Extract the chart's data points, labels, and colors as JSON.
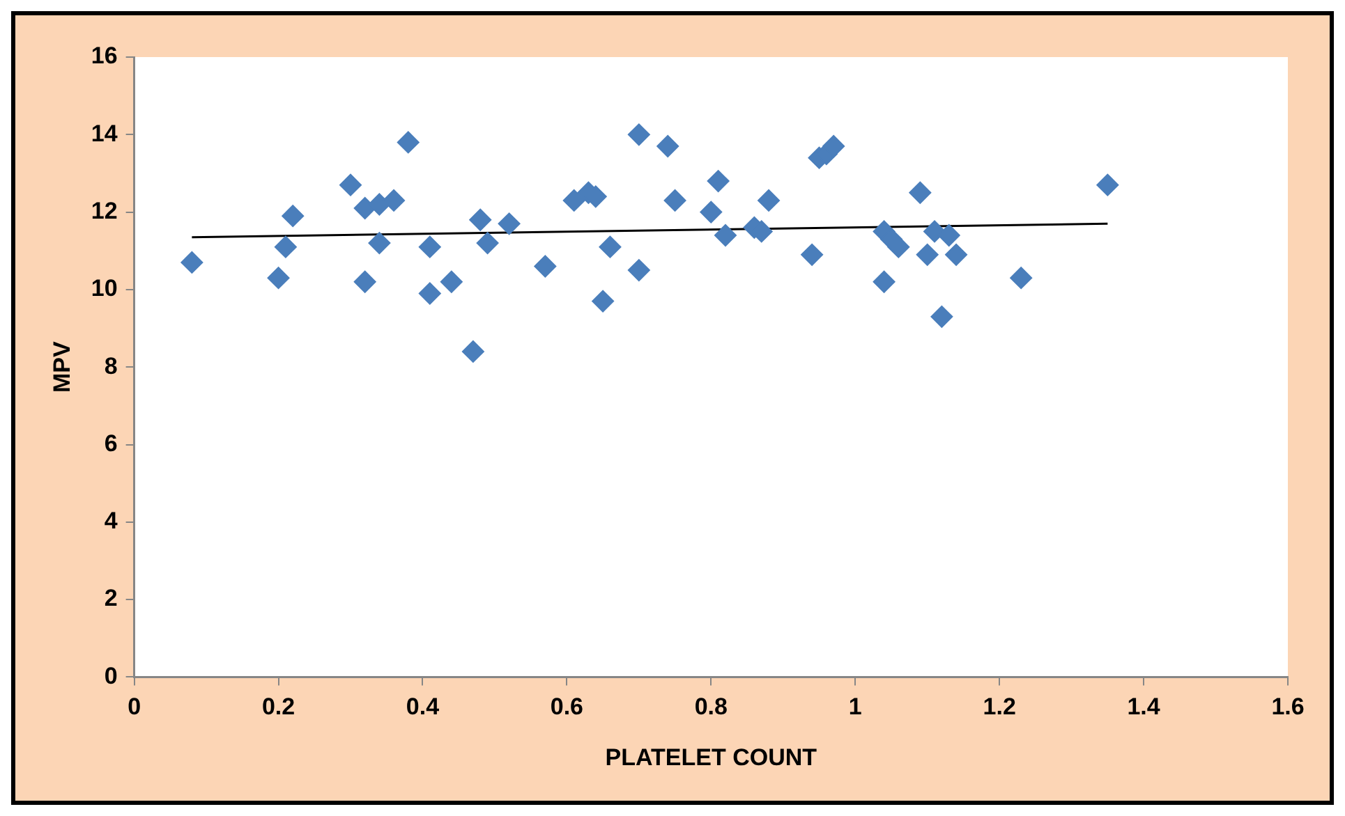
{
  "chart_data": {
    "type": "scatter",
    "xlabel": "PLATELET COUNT",
    "ylabel": "MPV",
    "xlim": [
      0,
      1.6
    ],
    "ylim": [
      0,
      16
    ],
    "xticks": [
      0,
      0.2,
      0.4,
      0.6,
      0.8,
      1,
      1.2,
      1.4,
      1.6
    ],
    "yticks": [
      0,
      2,
      4,
      6,
      8,
      10,
      12,
      14,
      16
    ],
    "grid": false,
    "legend": false,
    "marker": "diamond",
    "series": [
      {
        "type": "scatter",
        "color": "#4a7ebb",
        "x": [
          0.08,
          0.2,
          0.21,
          0.22,
          0.3,
          0.32,
          0.32,
          0.34,
          0.34,
          0.36,
          0.38,
          0.41,
          0.41,
          0.44,
          0.47,
          0.48,
          0.49,
          0.52,
          0.57,
          0.61,
          0.63,
          0.64,
          0.65,
          0.66,
          0.7,
          0.7,
          0.74,
          0.75,
          0.8,
          0.81,
          0.82,
          0.86,
          0.87,
          0.88,
          0.94,
          0.95,
          0.96,
          0.97,
          1.04,
          1.04,
          1.05,
          1.06,
          1.09,
          1.1,
          1.11,
          1.12,
          1.13,
          1.14,
          1.23,
          1.35
        ],
        "values": [
          10.7,
          10.3,
          11.1,
          11.9,
          12.7,
          12.1,
          10.2,
          12.2,
          11.2,
          12.3,
          13.8,
          11.1,
          9.9,
          10.2,
          8.4,
          11.8,
          11.2,
          11.7,
          10.6,
          12.3,
          12.5,
          12.4,
          9.7,
          11.1,
          14.0,
          10.5,
          13.7,
          12.3,
          12.0,
          12.8,
          11.4,
          11.6,
          11.5,
          12.3,
          10.9,
          13.4,
          13.5,
          13.7,
          11.5,
          10.2,
          11.3,
          11.1,
          12.5,
          10.9,
          11.5,
          9.3,
          11.4,
          10.9,
          10.3,
          12.7
        ]
      },
      {
        "type": "line",
        "marker": "none",
        "color": "#000000",
        "x": [
          0.08,
          1.35
        ],
        "values": [
          11.35,
          11.7
        ]
      }
    ]
  }
}
